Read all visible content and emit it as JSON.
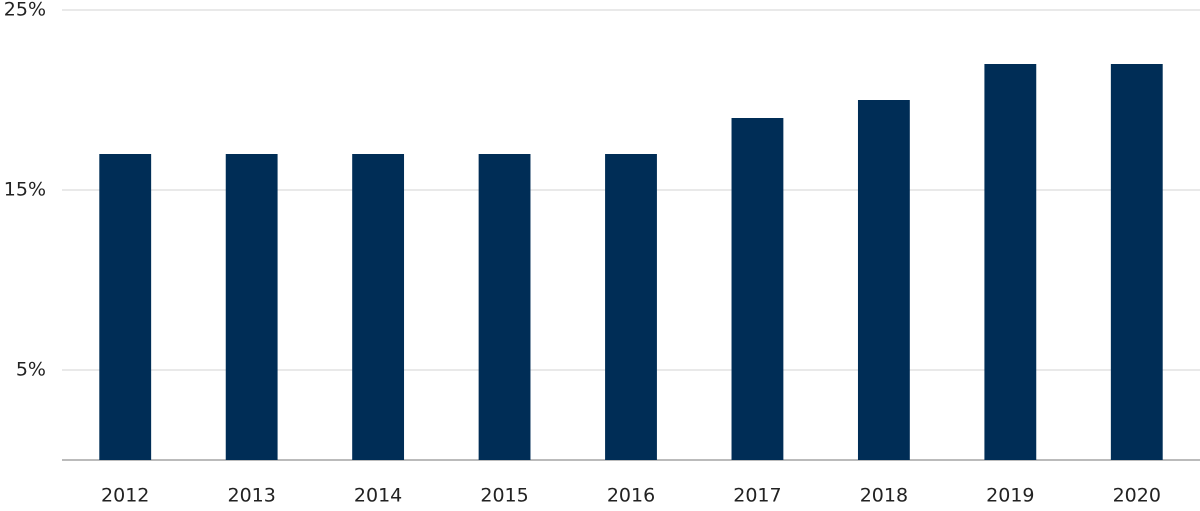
{
  "chart_data": {
    "type": "bar",
    "categories": [
      "2012",
      "2013",
      "2014",
      "2015",
      "2016",
      "2017",
      "2018",
      "2019",
      "2020"
    ],
    "values": [
      17,
      17,
      17,
      17,
      17,
      19,
      20,
      22,
      22
    ],
    "color": "#002d56",
    "ylim": [
      0,
      25
    ],
    "yticks": [
      {
        "value": 5,
        "label": "5%"
      },
      {
        "value": 15,
        "label": "15%"
      },
      {
        "value": 25,
        "label": "25%"
      }
    ],
    "grid": true
  }
}
